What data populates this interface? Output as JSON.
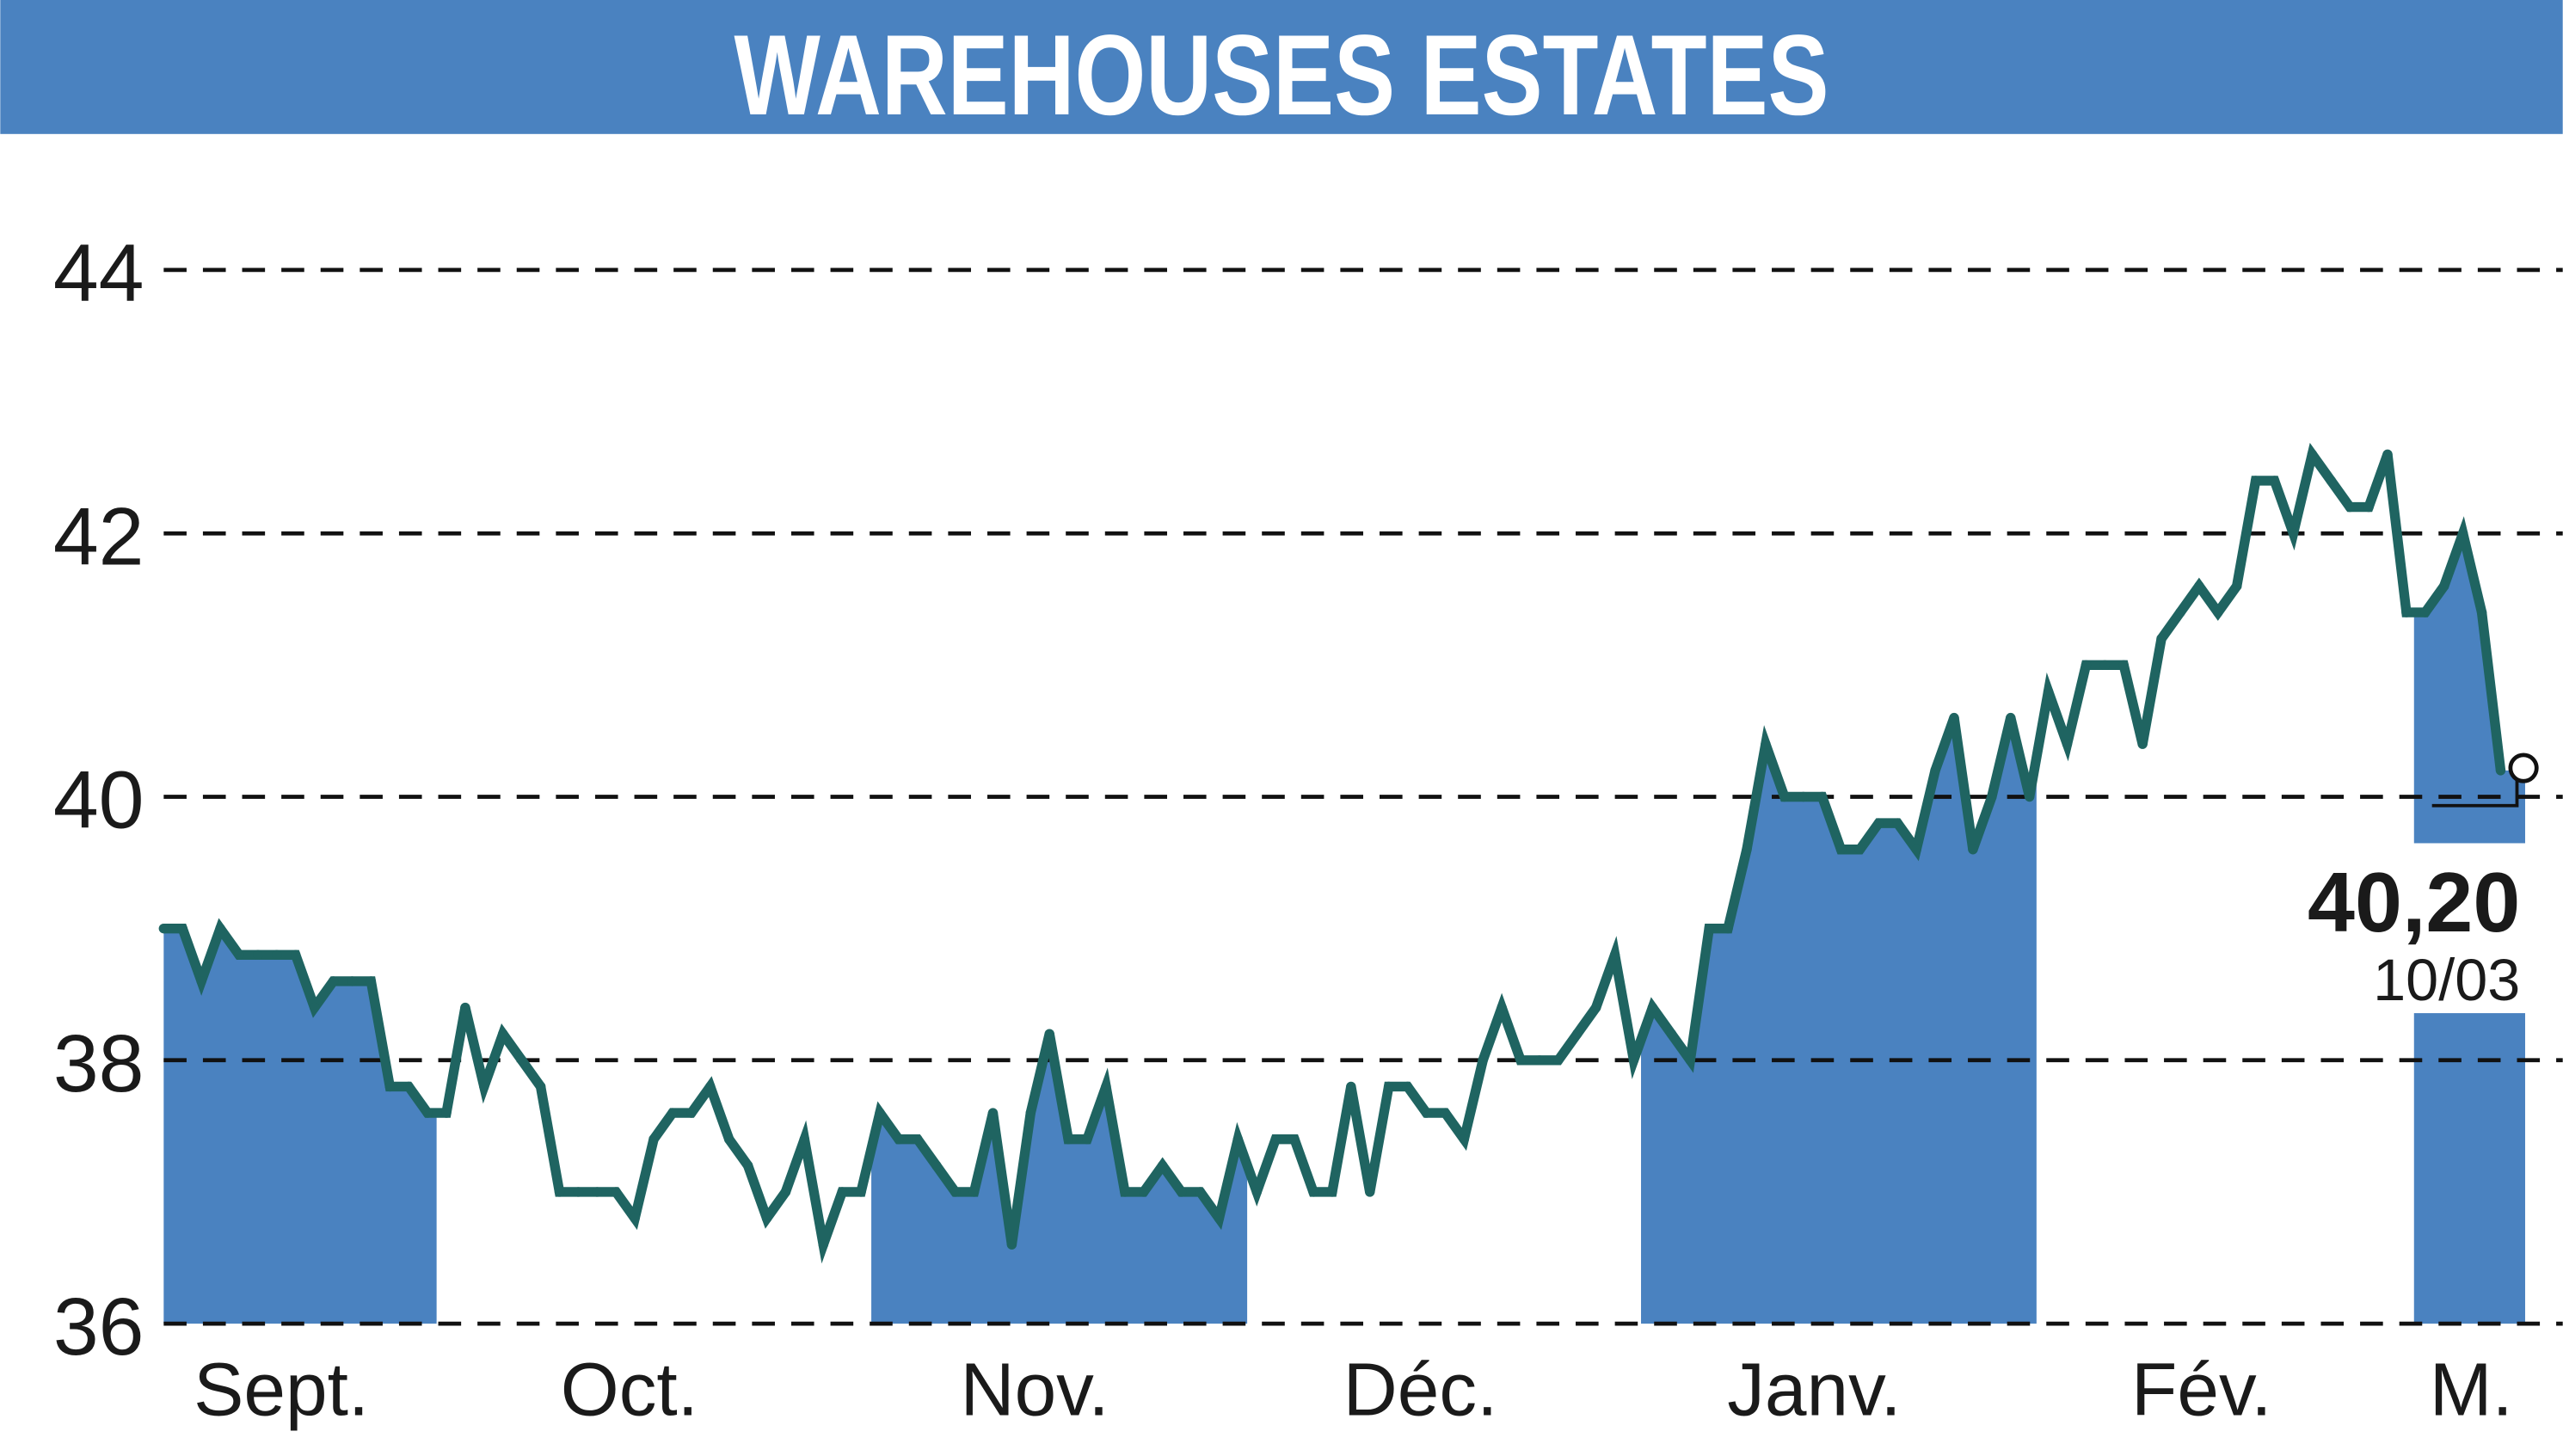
{
  "chart_data": {
    "type": "line",
    "title": "WAREHOUSES ESTATES",
    "ylim": [
      36,
      44
    ],
    "y_ticks": [
      "36",
      "38",
      "40",
      "42",
      "44"
    ],
    "x_ticks": [
      "Sept.",
      "Oct.",
      "Nov.",
      "Déc.",
      "Janv.",
      "Fév.",
      "M."
    ],
    "grid": "horizontal dashed",
    "last_value_label": "40,20",
    "last_date_label": "10/03",
    "colors": {
      "header": "#4a82c0",
      "line": "#1f6461",
      "band": "#4a82c0",
      "grid": "#111111"
    },
    "values": [
      39.0,
      39.0,
      38.6,
      39.0,
      38.8,
      38.8,
      38.8,
      38.8,
      38.4,
      38.6,
      38.6,
      38.6,
      37.8,
      37.8,
      37.6,
      37.6,
      38.4,
      37.8,
      38.2,
      38.0,
      37.8,
      37.0,
      37.0,
      37.0,
      37.0,
      36.8,
      37.4,
      37.6,
      37.6,
      37.8,
      37.4,
      37.2,
      36.8,
      37.0,
      37.4,
      36.6,
      37.0,
      37.0,
      37.6,
      37.4,
      37.4,
      37.2,
      37.0,
      37.0,
      37.6,
      36.6,
      37.6,
      38.2,
      37.4,
      37.4,
      37.8,
      37.0,
      37.0,
      37.2,
      37.0,
      37.0,
      36.8,
      37.4,
      37.0,
      37.4,
      37.4,
      37.0,
      37.0,
      37.8,
      37.0,
      37.8,
      37.8,
      37.6,
      37.6,
      37.4,
      38.0,
      38.4,
      38.0,
      38.0,
      38.0,
      38.2,
      38.4,
      38.8,
      38.0,
      38.4,
      38.2,
      38.0,
      39.0,
      39.0,
      39.6,
      40.4,
      40.0,
      40.0,
      40.0,
      39.6,
      39.6,
      39.8,
      39.8,
      39.6,
      40.2,
      40.6,
      39.6,
      40.0,
      40.6,
      40.0,
      40.8,
      40.4,
      41.0,
      41.0,
      41.0,
      40.4,
      41.2,
      41.4,
      41.6,
      41.4,
      41.6,
      42.4,
      42.4,
      42.0,
      42.6,
      42.4,
      42.2,
      42.2,
      42.6,
      41.4,
      41.4,
      41.6,
      42.0,
      41.4,
      40.2
    ]
  }
}
